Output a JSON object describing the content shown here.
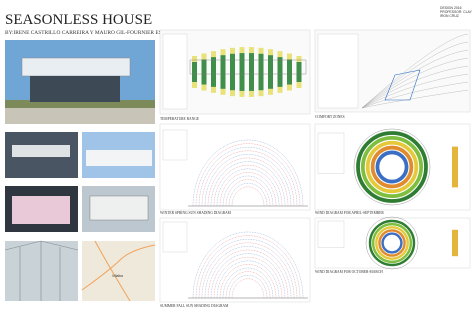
{
  "header": {
    "title": "SEASONLESS HOUSE",
    "subtitle": "BY:IRENE CASTRILLO CARREIRA Y MAURO GIL-FOURNIER ESQUERRA ARQUITECTOS",
    "info": [
      "DESIGN 2016",
      "PROFESSOR: CLAY",
      "IRON CRUZ"
    ]
  },
  "captions": {
    "temperature": "TEMPERATURE RANGE",
    "comfort": "COMFORT ZONES",
    "sun_winter": "WINTER SPRING SUN SHADING DIAGRAM",
    "wind_summer": "WIND DIAGRAM FOR APRIL-SEPTEMBER",
    "sun_summer": "SUMMER FALL SUN SHADING DIAGRAM",
    "wind_winter": "WIND DIAGRAM FOR OCTOBER-MARCH"
  },
  "map": {
    "label": "Villalba"
  }
}
